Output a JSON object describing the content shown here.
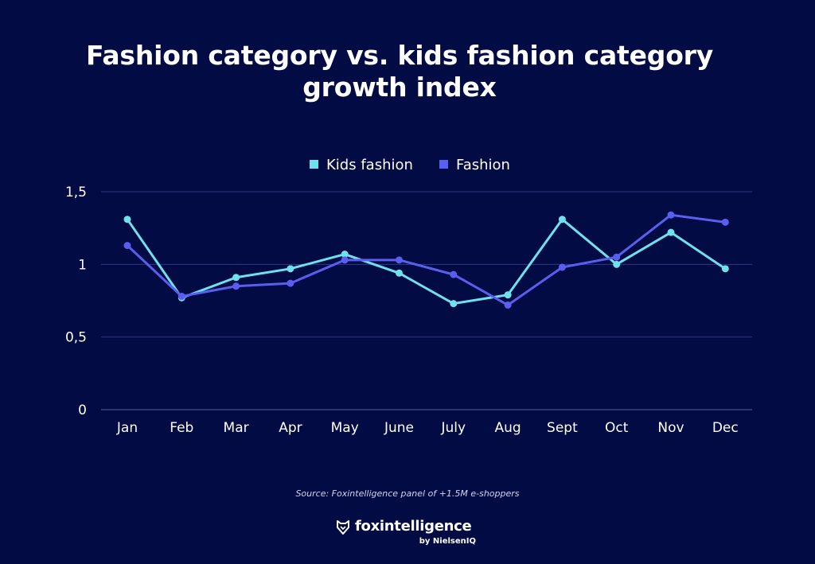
{
  "chart_data": {
    "type": "line",
    "title_lines": [
      "Fashion category vs. kids fashion category",
      "growth index"
    ],
    "categories": [
      "Jan",
      "Feb",
      "Mar",
      "Apr",
      "May",
      "June",
      "July",
      "Aug",
      "Sept",
      "Oct",
      "Nov",
      "Dec"
    ],
    "series": [
      {
        "name": "Kids fashion",
        "color": "#6ee0ee",
        "values": [
          1.31,
          0.77,
          0.91,
          0.97,
          1.07,
          0.94,
          0.73,
          0.79,
          1.31,
          1.0,
          1.22,
          0.97
        ]
      },
      {
        "name": "Fashion",
        "color": "#5a5ef0",
        "values": [
          1.13,
          0.78,
          0.85,
          0.87,
          1.03,
          1.03,
          0.93,
          0.72,
          0.98,
          1.05,
          1.34,
          1.29
        ]
      }
    ],
    "yticks": [
      {
        "value": 0,
        "label": "0"
      },
      {
        "value": 0.5,
        "label": "0,5"
      },
      {
        "value": 1,
        "label": "1"
      },
      {
        "value": 1.5,
        "label": "1,5"
      }
    ],
    "ylim": [
      0,
      1.5
    ],
    "grid": true,
    "legend_position": "top-center"
  },
  "source": "Source: Foxintelligence panel of +1.5M e-shoppers",
  "logo": {
    "brand": "foxintelligence",
    "sub": "by NielsenIQ"
  }
}
